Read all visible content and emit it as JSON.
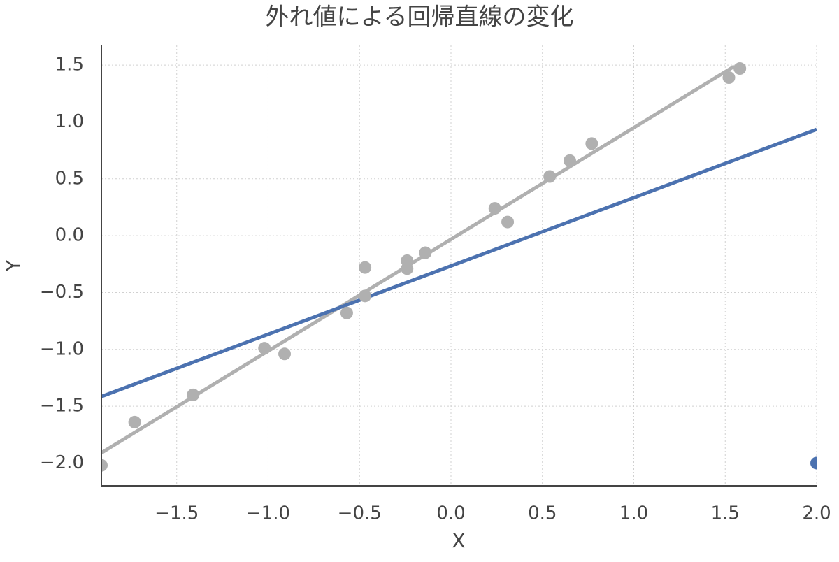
{
  "chart_data": {
    "type": "scatter",
    "title": "外れ値による回帰直線の変化",
    "x_label": "X",
    "y_label": "Y",
    "xlim": [
      -1.912,
      2.0
    ],
    "ylim": [
      -2.2,
      1.673
    ],
    "xticks": [
      {
        "value": -1.5,
        "label": "−1.5"
      },
      {
        "value": -1.0,
        "label": "−1.0"
      },
      {
        "value": -0.5,
        "label": "−0.5"
      },
      {
        "value": 0,
        "label": "0.0"
      },
      0.5,
      {
        "value": 1,
        "label": "1.0"
      },
      1.5,
      {
        "value": 2,
        "label": "2.0"
      }
    ],
    "yticks": [
      {
        "value": -2.0,
        "label": "−2.0"
      },
      {
        "value": -1.5,
        "label": "−1.5"
      },
      {
        "value": -1.0,
        "label": "−1.0"
      },
      {
        "value": -0.5,
        "label": "−0.5"
      },
      {
        "value": 0,
        "label": "0.0"
      },
      0.5,
      {
        "value": 1,
        "label": "1.0"
      },
      1.5
    ],
    "grid": true,
    "series": [
      {
        "kind": "line",
        "color": "#b0b0b0",
        "x": [
          -1.912,
          1.55
        ],
        "values": [
          -1.91,
          1.49
        ]
      },
      {
        "kind": "line",
        "color": "#4c72b0",
        "x": [
          -1.912,
          2.0
        ],
        "values": [
          -1.415,
          0.935
        ]
      },
      {
        "kind": "scatter",
        "color": "#b0b0b0",
        "x": [
          -1.912,
          -1.73,
          -1.41,
          -1.02,
          -0.91,
          -0.57,
          -0.47,
          -0.47,
          -0.24,
          -0.24,
          -0.14,
          0.24,
          0.31,
          0.54,
          0.65,
          0.77,
          1.52,
          1.58
        ],
        "values": [
          -2.02,
          -1.64,
          -1.4,
          -0.99,
          -1.04,
          -0.68,
          -0.28,
          -0.53,
          -0.22,
          -0.29,
          -0.15,
          0.24,
          0.12,
          0.52,
          0.66,
          0.81,
          1.39,
          1.47
        ]
      },
      {
        "kind": "scatter",
        "color": "#4c72b0",
        "x": [
          2.0
        ],
        "values": [
          -2.0
        ]
      }
    ]
  }
}
